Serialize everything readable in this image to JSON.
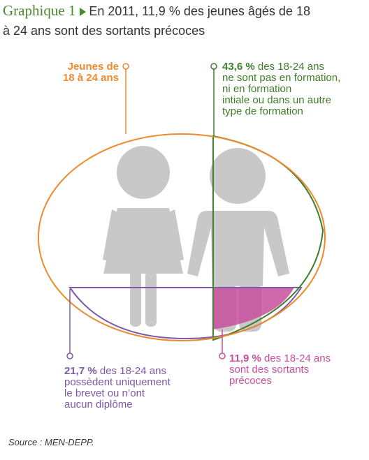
{
  "header": {
    "lead": "Graphique 1",
    "title_line1": "En 2011, 11,9 % des jeunes âgés de 18",
    "title_line2": "à 24 ans sont des sortants précoces"
  },
  "labels": {
    "youth": {
      "line1": "Jeunes de",
      "line2": "18 à 24 ans"
    },
    "not_in_training": {
      "value": "43,6 %",
      "line1": "des 18-24 ans",
      "line2": "ne sont pas en formation,",
      "line3": "ni en formation",
      "line4": "intiale ou dans un autre",
      "line5": "type de formation"
    },
    "low_diploma": {
      "value": "21,7 %",
      "line1": "des 18-24 ans",
      "line2": "possèdent uniquement",
      "line3": "le brevet ou n’ont",
      "line4": "aucun diplôme"
    },
    "early_leavers": {
      "value": "11,9 %",
      "line1": "des 18-24 ans",
      "line2": "sont des sortants",
      "line3": "précoces"
    }
  },
  "source": "Source : MEN-DEPP.",
  "colors": {
    "orange": "#ef8a2e",
    "green": "#3d7e2a",
    "purple": "#7b5aa6",
    "pink": "#c84f9e",
    "figure_gray": "#c8c8c8"
  },
  "icons": [
    "female-figure-icon",
    "male-figure-icon"
  ]
}
